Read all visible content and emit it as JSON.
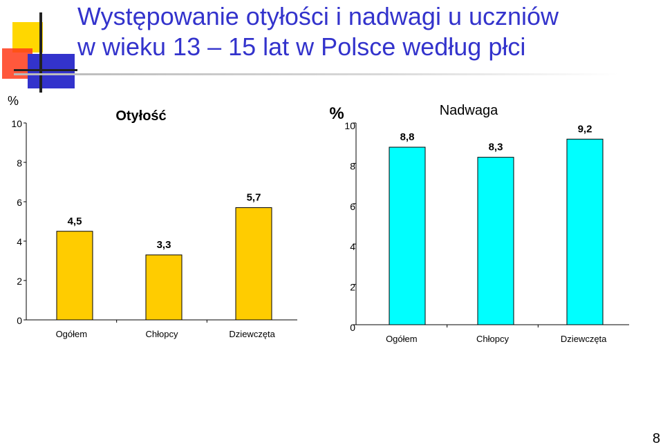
{
  "slide": {
    "title_line1": "Występowanie otyłości i nadwagi u uczniów",
    "title_line2": "w wieku 13 – 15 lat w Polsce według płci",
    "page_number": "8"
  },
  "colors": {
    "title": "#3333cc",
    "obesity_bar": "#ffcc00",
    "overweight_bar": "#00ffff",
    "logo_yellow": "#ffd700",
    "logo_red": "#ff3300",
    "logo_blue": "#3333cc"
  },
  "chart_data": [
    {
      "type": "bar",
      "title": "Otyłość",
      "ylabel": "%",
      "categories": [
        "Ogółem",
        "Chłopcy",
        "Dziewczęta"
      ],
      "values": [
        4.5,
        3.3,
        5.7
      ],
      "value_labels": [
        "4,5",
        "3,3",
        "5,7"
      ],
      "yticks": [
        "0",
        "2",
        "4",
        "6",
        "8",
        "10"
      ],
      "ylim": [
        0,
        10
      ],
      "grid": false,
      "legend": "none"
    },
    {
      "type": "bar",
      "title": "Nadwaga",
      "ylabel": "%",
      "categories": [
        "Ogółem",
        "Chłopcy",
        "Dziewczęta"
      ],
      "values": [
        8.8,
        8.3,
        9.2
      ],
      "value_labels": [
        "8,8",
        "8,3",
        "9,2"
      ],
      "yticks": [
        "0",
        "2",
        "4",
        "6",
        "8",
        "10"
      ],
      "ylim": [
        0,
        10
      ],
      "grid": false,
      "legend": "none"
    }
  ]
}
